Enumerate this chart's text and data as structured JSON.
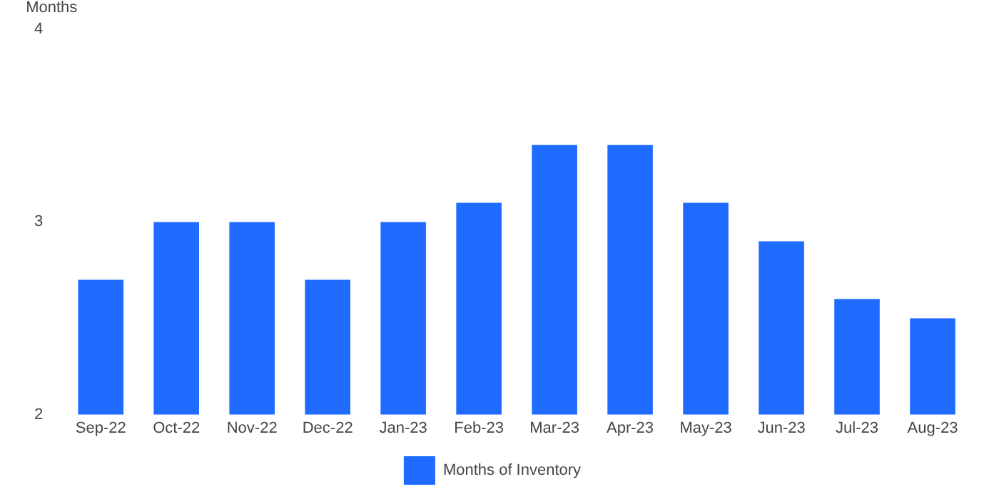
{
  "chart_data": {
    "type": "bar",
    "ylabel": "Months",
    "categories": [
      "Sep-22",
      "Oct-22",
      "Nov-22",
      "Dec-22",
      "Jan-23",
      "Feb-23",
      "Mar-23",
      "Apr-23",
      "May-23",
      "Jun-23",
      "Jul-23",
      "Aug-23"
    ],
    "series": [
      {
        "name": "Months of Inventory",
        "color": "#1f6bff",
        "values": [
          2.7,
          3.0,
          3.0,
          2.7,
          3.0,
          3.1,
          3.4,
          3.4,
          3.1,
          2.9,
          2.6,
          2.5
        ]
      }
    ],
    "ylim": [
      2,
      4
    ],
    "yticks": [
      2,
      3,
      4
    ],
    "grid": false,
    "legend": "bottom"
  }
}
